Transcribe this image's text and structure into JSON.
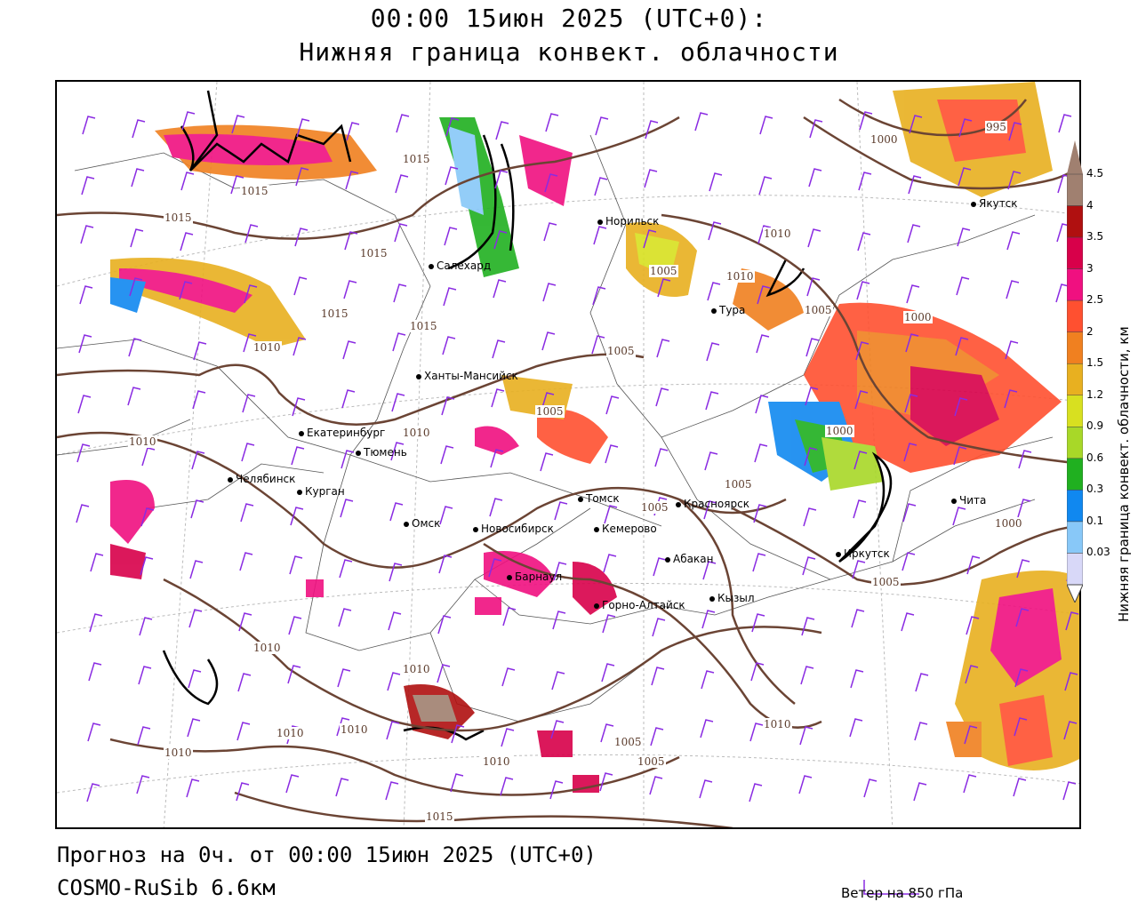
{
  "header": {
    "line1": "00:00 15июн 2025 (UTC+0):",
    "line2": "Нижняя граница конвект. облачности"
  },
  "footer": {
    "forecast": "Прогноз на 0ч. от 00:00 15июн 2025 (UTC+0)",
    "model": "COSMO-RuSib 6.6км",
    "wind_legend": "Ветер на 850 гПа"
  },
  "colorbar": {
    "label": "Нижняя граница конвект. облачности, км",
    "ticks": [
      "4.5",
      "4",
      "3.5",
      "3",
      "2.5",
      "2",
      "1.5",
      "1.2",
      "0.9",
      "0.6",
      "0.3",
      "0.1",
      "0.03"
    ],
    "colors": [
      "#a08070",
      "#b01010",
      "#d8004a",
      "#f01080",
      "#ff5030",
      "#f08020",
      "#e8b020",
      "#d8e020",
      "#a8d828",
      "#20b020",
      "#1088f0",
      "#88c8f8",
      "#d8d8f8"
    ]
  },
  "colors": {
    "isobar": "#6b4434",
    "coast": "#000000",
    "wind": "#8a2be2",
    "border": "#555555"
  },
  "cities": [
    {
      "name": "Норильск"
    },
    {
      "name": "Салехард"
    },
    {
      "name": "Тура"
    },
    {
      "name": "Якутск"
    },
    {
      "name": "Ханты-Мансийск"
    },
    {
      "name": "Екатеринбург"
    },
    {
      "name": "Тюмень"
    },
    {
      "name": "Челябинск"
    },
    {
      "name": "Курган"
    },
    {
      "name": "Омск"
    },
    {
      "name": "Томск"
    },
    {
      "name": "Красноярск"
    },
    {
      "name": "Новосибирск"
    },
    {
      "name": "Кемерово"
    },
    {
      "name": "Абакан"
    },
    {
      "name": "Барнаул"
    },
    {
      "name": "Иркутск"
    },
    {
      "name": "Чита"
    },
    {
      "name": "Горно-Алтайск"
    },
    {
      "name": "Кызыл"
    }
  ],
  "isobar_labels": [
    "1015",
    "1015",
    "1015",
    "1015",
    "1015",
    "1015",
    "1010",
    "1010",
    "1005",
    "1005",
    "1005",
    "1000",
    "995",
    "1010",
    "1010",
    "1005",
    "1000",
    "1000",
    "1005",
    "1005",
    "1010",
    "1010",
    "1010",
    "1010",
    "1005",
    "1005",
    "1010",
    "1010",
    "1010",
    "1015",
    "1010",
    "1005",
    "1000"
  ]
}
